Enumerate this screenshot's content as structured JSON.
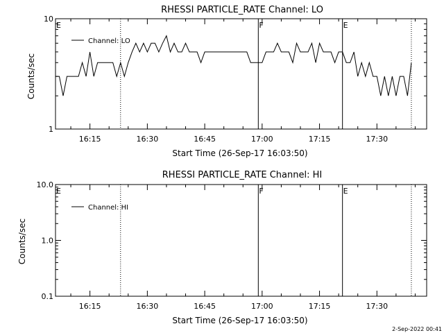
{
  "footer": {
    "stamp": "2-Sep-2022 00:41"
  },
  "chart_data": [
    {
      "type": "line",
      "title": "RHESSI PARTICLE_RATE Channel: LO",
      "xlabel": "Start Time (26-Sep-17 16:03:50)",
      "ylabel": "Counts/sec",
      "yscale": "log",
      "ylim": [
        1,
        10
      ],
      "xlim": [
        "16:06",
        "17:43"
      ],
      "ytick_labels": [
        "1",
        "10"
      ],
      "xtick_labels": [
        "16:15",
        "16:30",
        "16:45",
        "17:00",
        "17:15",
        "17:30"
      ],
      "xticks": [
        "16:15",
        "16:30",
        "16:45",
        "17:00",
        "17:15",
        "17:30"
      ],
      "legend": {
        "label": "Channel: LO",
        "placement": "top-left"
      },
      "markers": [
        {
          "time": "16:06",
          "label": "E",
          "style": "solid"
        },
        {
          "time": "16:23",
          "label": "",
          "style": "dotted"
        },
        {
          "time": "16:59",
          "label": "F",
          "style": "solid"
        },
        {
          "time": "17:21",
          "label": "E",
          "style": "solid"
        },
        {
          "time": "17:39",
          "label": "",
          "style": "dotted"
        }
      ],
      "series": [
        {
          "name": "Channel: LO",
          "x": [
            "16:06",
            "16:07",
            "16:08",
            "16:09",
            "16:10",
            "16:11",
            "16:12",
            "16:13",
            "16:14",
            "16:15",
            "16:16",
            "16:17",
            "16:18",
            "16:19",
            "16:20",
            "16:21",
            "16:22",
            "16:23",
            "16:24",
            "16:25",
            "16:26",
            "16:27",
            "16:28",
            "16:29",
            "16:30",
            "16:31",
            "16:32",
            "16:33",
            "16:34",
            "16:35",
            "16:36",
            "16:37",
            "16:38",
            "16:39",
            "16:40",
            "16:41",
            "16:42",
            "16:43",
            "16:44",
            "16:45",
            "16:46",
            "16:47",
            "16:48",
            "16:49",
            "16:50",
            "16:51",
            "16:52",
            "16:53",
            "16:54",
            "16:55",
            "16:56",
            "16:57",
            "16:58",
            "16:59",
            "17:00",
            "17:01",
            "17:02",
            "17:03",
            "17:04",
            "17:05",
            "17:06",
            "17:07",
            "17:08",
            "17:09",
            "17:10",
            "17:11",
            "17:12",
            "17:13",
            "17:14",
            "17:15",
            "17:16",
            "17:17",
            "17:18",
            "17:19",
            "17:20",
            "17:21",
            "17:22",
            "17:23",
            "17:24",
            "17:25",
            "17:26",
            "17:27",
            "17:28",
            "17:29",
            "17:30",
            "17:31",
            "17:32",
            "17:33",
            "17:34",
            "17:35",
            "17:36",
            "17:37",
            "17:38",
            "17:39"
          ],
          "y": [
            3,
            3,
            2,
            3,
            3,
            3,
            3,
            4,
            3,
            5,
            3,
            4,
            4,
            4,
            4,
            4,
            3,
            4,
            3,
            4,
            5,
            6,
            5,
            6,
            5,
            6,
            6,
            5,
            6,
            7,
            5,
            6,
            5,
            5,
            6,
            5,
            5,
            5,
            4,
            5,
            5,
            5,
            5,
            5,
            5,
            5,
            5,
            5,
            5,
            5,
            5,
            4,
            4,
            4,
            4,
            5,
            5,
            5,
            6,
            5,
            5,
            5,
            4,
            6,
            5,
            5,
            5,
            6,
            4,
            6,
            5,
            5,
            5,
            4,
            5,
            5,
            4,
            4,
            5,
            3,
            4,
            3,
            4,
            3,
            3,
            2,
            3,
            2,
            3,
            2,
            3,
            3,
            2,
            4
          ]
        }
      ]
    },
    {
      "type": "line",
      "title": "RHESSI PARTICLE_RATE Channel: HI",
      "xlabel": "Start Time (26-Sep-17 16:03:50)",
      "ylabel": "Counts/sec",
      "yscale": "log",
      "ylim": [
        0.1,
        10
      ],
      "xlim": [
        "16:06",
        "17:43"
      ],
      "ytick_labels": [
        "0.1",
        "1.0",
        "10.0"
      ],
      "xtick_labels": [
        "16:15",
        "16:30",
        "16:45",
        "17:00",
        "17:15",
        "17:30"
      ],
      "xticks": [
        "16:15",
        "16:30",
        "16:45",
        "17:00",
        "17:15",
        "17:30"
      ],
      "legend": {
        "label": "Channel: HI",
        "placement": "top-left"
      },
      "markers": [
        {
          "time": "16:06",
          "label": "E",
          "style": "solid"
        },
        {
          "time": "16:23",
          "label": "",
          "style": "dotted"
        },
        {
          "time": "16:59",
          "label": "F",
          "style": "solid"
        },
        {
          "time": "17:21",
          "label": "E",
          "style": "solid"
        },
        {
          "time": "17:39",
          "label": "",
          "style": "dotted"
        }
      ],
      "series": [
        {
          "name": "Channel: HI",
          "x": [],
          "y": []
        }
      ]
    }
  ]
}
